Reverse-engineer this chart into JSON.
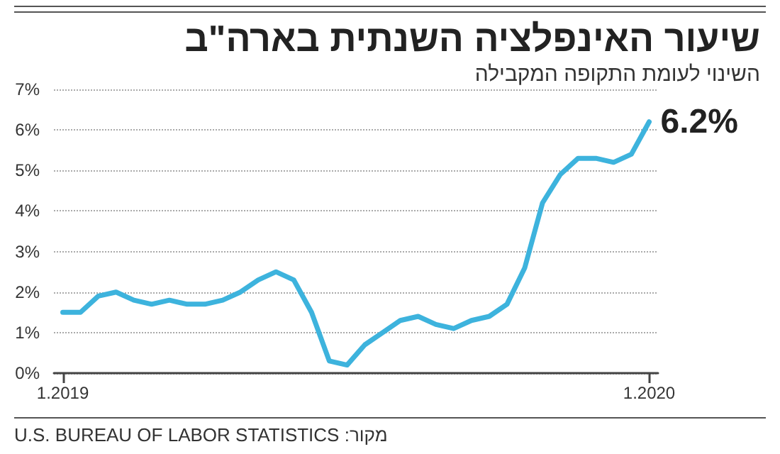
{
  "chart_data": {
    "type": "line",
    "title": "שיעור האינפלציה השנתית בארה\"ב",
    "subtitle": "השינוי לעומת התקופה המקבילה",
    "categories": [
      "1.2019",
      null,
      null,
      null,
      null,
      null,
      null,
      null,
      null,
      null,
      null,
      null,
      null,
      null,
      null,
      null,
      null,
      null,
      null,
      null,
      null,
      null,
      null,
      null,
      null,
      null,
      null,
      null,
      null,
      null,
      null,
      null,
      null,
      "1.2020"
    ],
    "series": [
      {
        "color": "#3db3dd",
        "values": [
          1.5,
          1.5,
          1.9,
          2.0,
          1.8,
          1.7,
          1.8,
          1.7,
          1.7,
          1.8,
          2.0,
          2.3,
          2.5,
          2.3,
          1.5,
          0.3,
          0.2,
          0.7,
          1.0,
          1.3,
          1.4,
          1.2,
          1.1,
          1.3,
          1.4,
          1.7,
          2.6,
          4.2,
          4.9,
          5.3,
          5.3,
          5.2,
          5.4,
          6.2
        ]
      }
    ],
    "ylim": [
      0,
      7
    ],
    "yticks": [
      {
        "value": 0,
        "label": "0%"
      },
      {
        "value": 1,
        "label": "1%"
      },
      {
        "value": 2,
        "label": "2%"
      },
      {
        "value": 3,
        "label": "3%"
      },
      {
        "value": 4,
        "label": "4%"
      },
      {
        "value": 5,
        "label": "5%"
      },
      {
        "value": 6,
        "label": "6%"
      },
      {
        "value": 7,
        "label": "7%"
      }
    ],
    "grid": "y",
    "marker": "none",
    "line_style": "solid",
    "annotations": [
      {
        "text": "6.2%",
        "x": "1.2020",
        "y": 6.2
      },
      "מקור: U.S. BUREAU OF LABOR STATISTICS"
    ]
  }
}
